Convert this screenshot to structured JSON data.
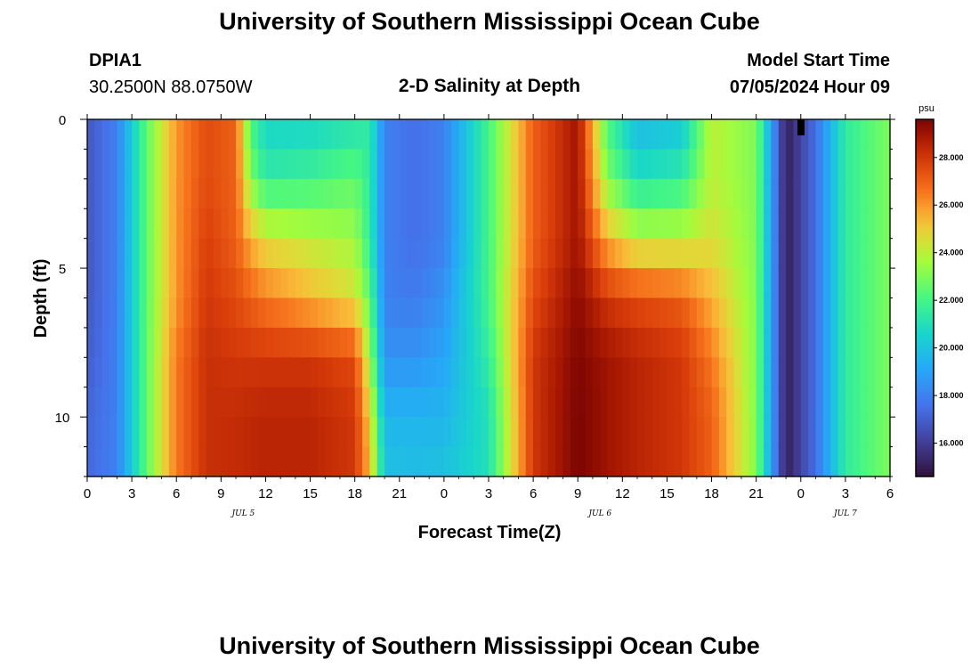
{
  "header": {
    "title": "University of Southern Mississippi Ocean Cube",
    "station": "DPIA1",
    "coords": "30.2500N  88.0750W",
    "plot_title": "2-D Salinity at Depth",
    "start_label": "Model Start Time",
    "start_value": "07/05/2024 Hour 09"
  },
  "footer": {
    "title": "University of Southern Mississippi Ocean Cube"
  },
  "chart_data": {
    "type": "heatmap",
    "title": "2-D Salinity at Depth",
    "xlabel": "Forecast Time(Z)",
    "ylabel": "Depth (ft)",
    "x_tick_labels": [
      "0",
      "3",
      "6",
      "9",
      "12",
      "15",
      "18",
      "21",
      "0",
      "3",
      "6",
      "9",
      "12",
      "15",
      "18",
      "21",
      "0",
      "3",
      "6"
    ],
    "x_date_labels": [
      {
        "label": "JUL 5",
        "tick_index": 3.5
      },
      {
        "label": "JUL 6",
        "tick_index": 11.5
      },
      {
        "label": "JUL 7",
        "tick_index": 17
      }
    ],
    "xlim_hours": [
      0,
      54
    ],
    "y_tick_labels": [
      "0",
      "5",
      "10"
    ],
    "ylim_ft": [
      0,
      12
    ],
    "colorbar": {
      "label": "psu",
      "min": 14.6,
      "max": 29.6,
      "tick_labels": [
        "16.000",
        "18.000",
        "20.000",
        "22.000",
        "24.000",
        "26.000",
        "28.000"
      ],
      "tick_values": [
        16,
        18,
        20,
        22,
        24,
        26,
        28
      ],
      "colormap": "turbo"
    },
    "profiles": {
      "depths_ft": [
        0,
        2,
        4,
        6,
        8,
        10,
        12
      ],
      "by_hour": [
        {
          "hour": 0,
          "values": [
            16.8,
            16.8,
            16.8,
            16.8,
            17.0,
            17.2,
            17.3
          ]
        },
        {
          "hour": 2,
          "values": [
            18.0,
            18.0,
            18.0,
            18.0,
            18.0,
            18.0,
            18.0
          ]
        },
        {
          "hour": 4,
          "values": [
            22.5,
            22.5,
            22.5,
            22.5,
            22.5,
            22.5,
            22.5
          ]
        },
        {
          "hour": 6,
          "values": [
            26.0,
            26.0,
            26.0,
            26.0,
            26.5,
            26.5,
            26.5
          ]
        },
        {
          "hour": 8,
          "values": [
            27.5,
            27.5,
            27.8,
            28.0,
            28.2,
            28.2,
            28.2
          ]
        },
        {
          "hour": 10,
          "values": [
            27.0,
            27.0,
            27.0,
            27.5,
            28.0,
            28.3,
            28.3
          ]
        },
        {
          "hour": 11,
          "values": [
            22.0,
            23.0,
            25.5,
            27.0,
            28.0,
            28.4,
            28.4
          ]
        },
        {
          "hour": 12,
          "values": [
            20.5,
            21.5,
            24.5,
            26.5,
            28.0,
            28.5,
            28.5
          ]
        },
        {
          "hour": 15,
          "values": [
            20.5,
            21.8,
            24.0,
            25.5,
            28.0,
            28.5,
            28.5
          ]
        },
        {
          "hour": 18,
          "values": [
            21.0,
            22.5,
            23.5,
            24.5,
            27.5,
            28.0,
            28.0
          ]
        },
        {
          "hour": 19,
          "values": [
            21.5,
            21.5,
            21.5,
            22.5,
            23.5,
            25.0,
            25.5
          ]
        },
        {
          "hour": 20,
          "values": [
            18.0,
            18.0,
            18.0,
            18.0,
            18.5,
            19.5,
            20.0
          ]
        },
        {
          "hour": 22,
          "values": [
            17.5,
            17.5,
            17.5,
            17.8,
            18.5,
            19.5,
            19.8
          ]
        },
        {
          "hour": 24,
          "values": [
            18.0,
            18.0,
            18.0,
            18.5,
            19.0,
            19.5,
            20.0
          ]
        },
        {
          "hour": 27,
          "values": [
            22.0,
            22.0,
            22.0,
            22.0,
            21.5,
            21.0,
            21.0
          ]
        },
        {
          "hour": 30,
          "values": [
            27.0,
            27.0,
            27.0,
            27.5,
            28.0,
            28.0,
            28.0
          ]
        },
        {
          "hour": 33,
          "values": [
            29.0,
            29.0,
            29.0,
            29.3,
            29.5,
            29.6,
            29.6
          ]
        },
        {
          "hour": 35,
          "values": [
            22.0,
            23.0,
            25.5,
            28.0,
            29.0,
            29.0,
            29.0
          ]
        },
        {
          "hour": 37,
          "values": [
            19.5,
            21.0,
            24.0,
            27.5,
            28.5,
            28.5,
            28.5
          ]
        },
        {
          "hour": 40,
          "values": [
            20.0,
            21.5,
            24.0,
            27.0,
            28.0,
            28.0,
            28.0
          ]
        },
        {
          "hour": 42,
          "values": [
            24.0,
            24.0,
            24.5,
            25.5,
            26.5,
            27.0,
            27.0
          ]
        },
        {
          "hour": 45,
          "values": [
            23.0,
            23.0,
            23.0,
            23.0,
            23.0,
            23.0,
            23.0
          ]
        },
        {
          "hour": 47,
          "values": [
            15.0,
            15.0,
            15.0,
            15.0,
            15.0,
            15.0,
            15.0
          ]
        },
        {
          "hour": 49,
          "values": [
            17.5,
            17.5,
            17.5,
            17.5,
            17.5,
            17.5,
            17.5
          ]
        },
        {
          "hour": 51,
          "values": [
            21.5,
            21.5,
            21.5,
            21.5,
            21.5,
            21.5,
            21.5
          ]
        },
        {
          "hour": 54,
          "values": [
            23.0,
            23.0,
            23.0,
            23.0,
            23.0,
            23.0,
            23.0
          ]
        }
      ]
    }
  }
}
